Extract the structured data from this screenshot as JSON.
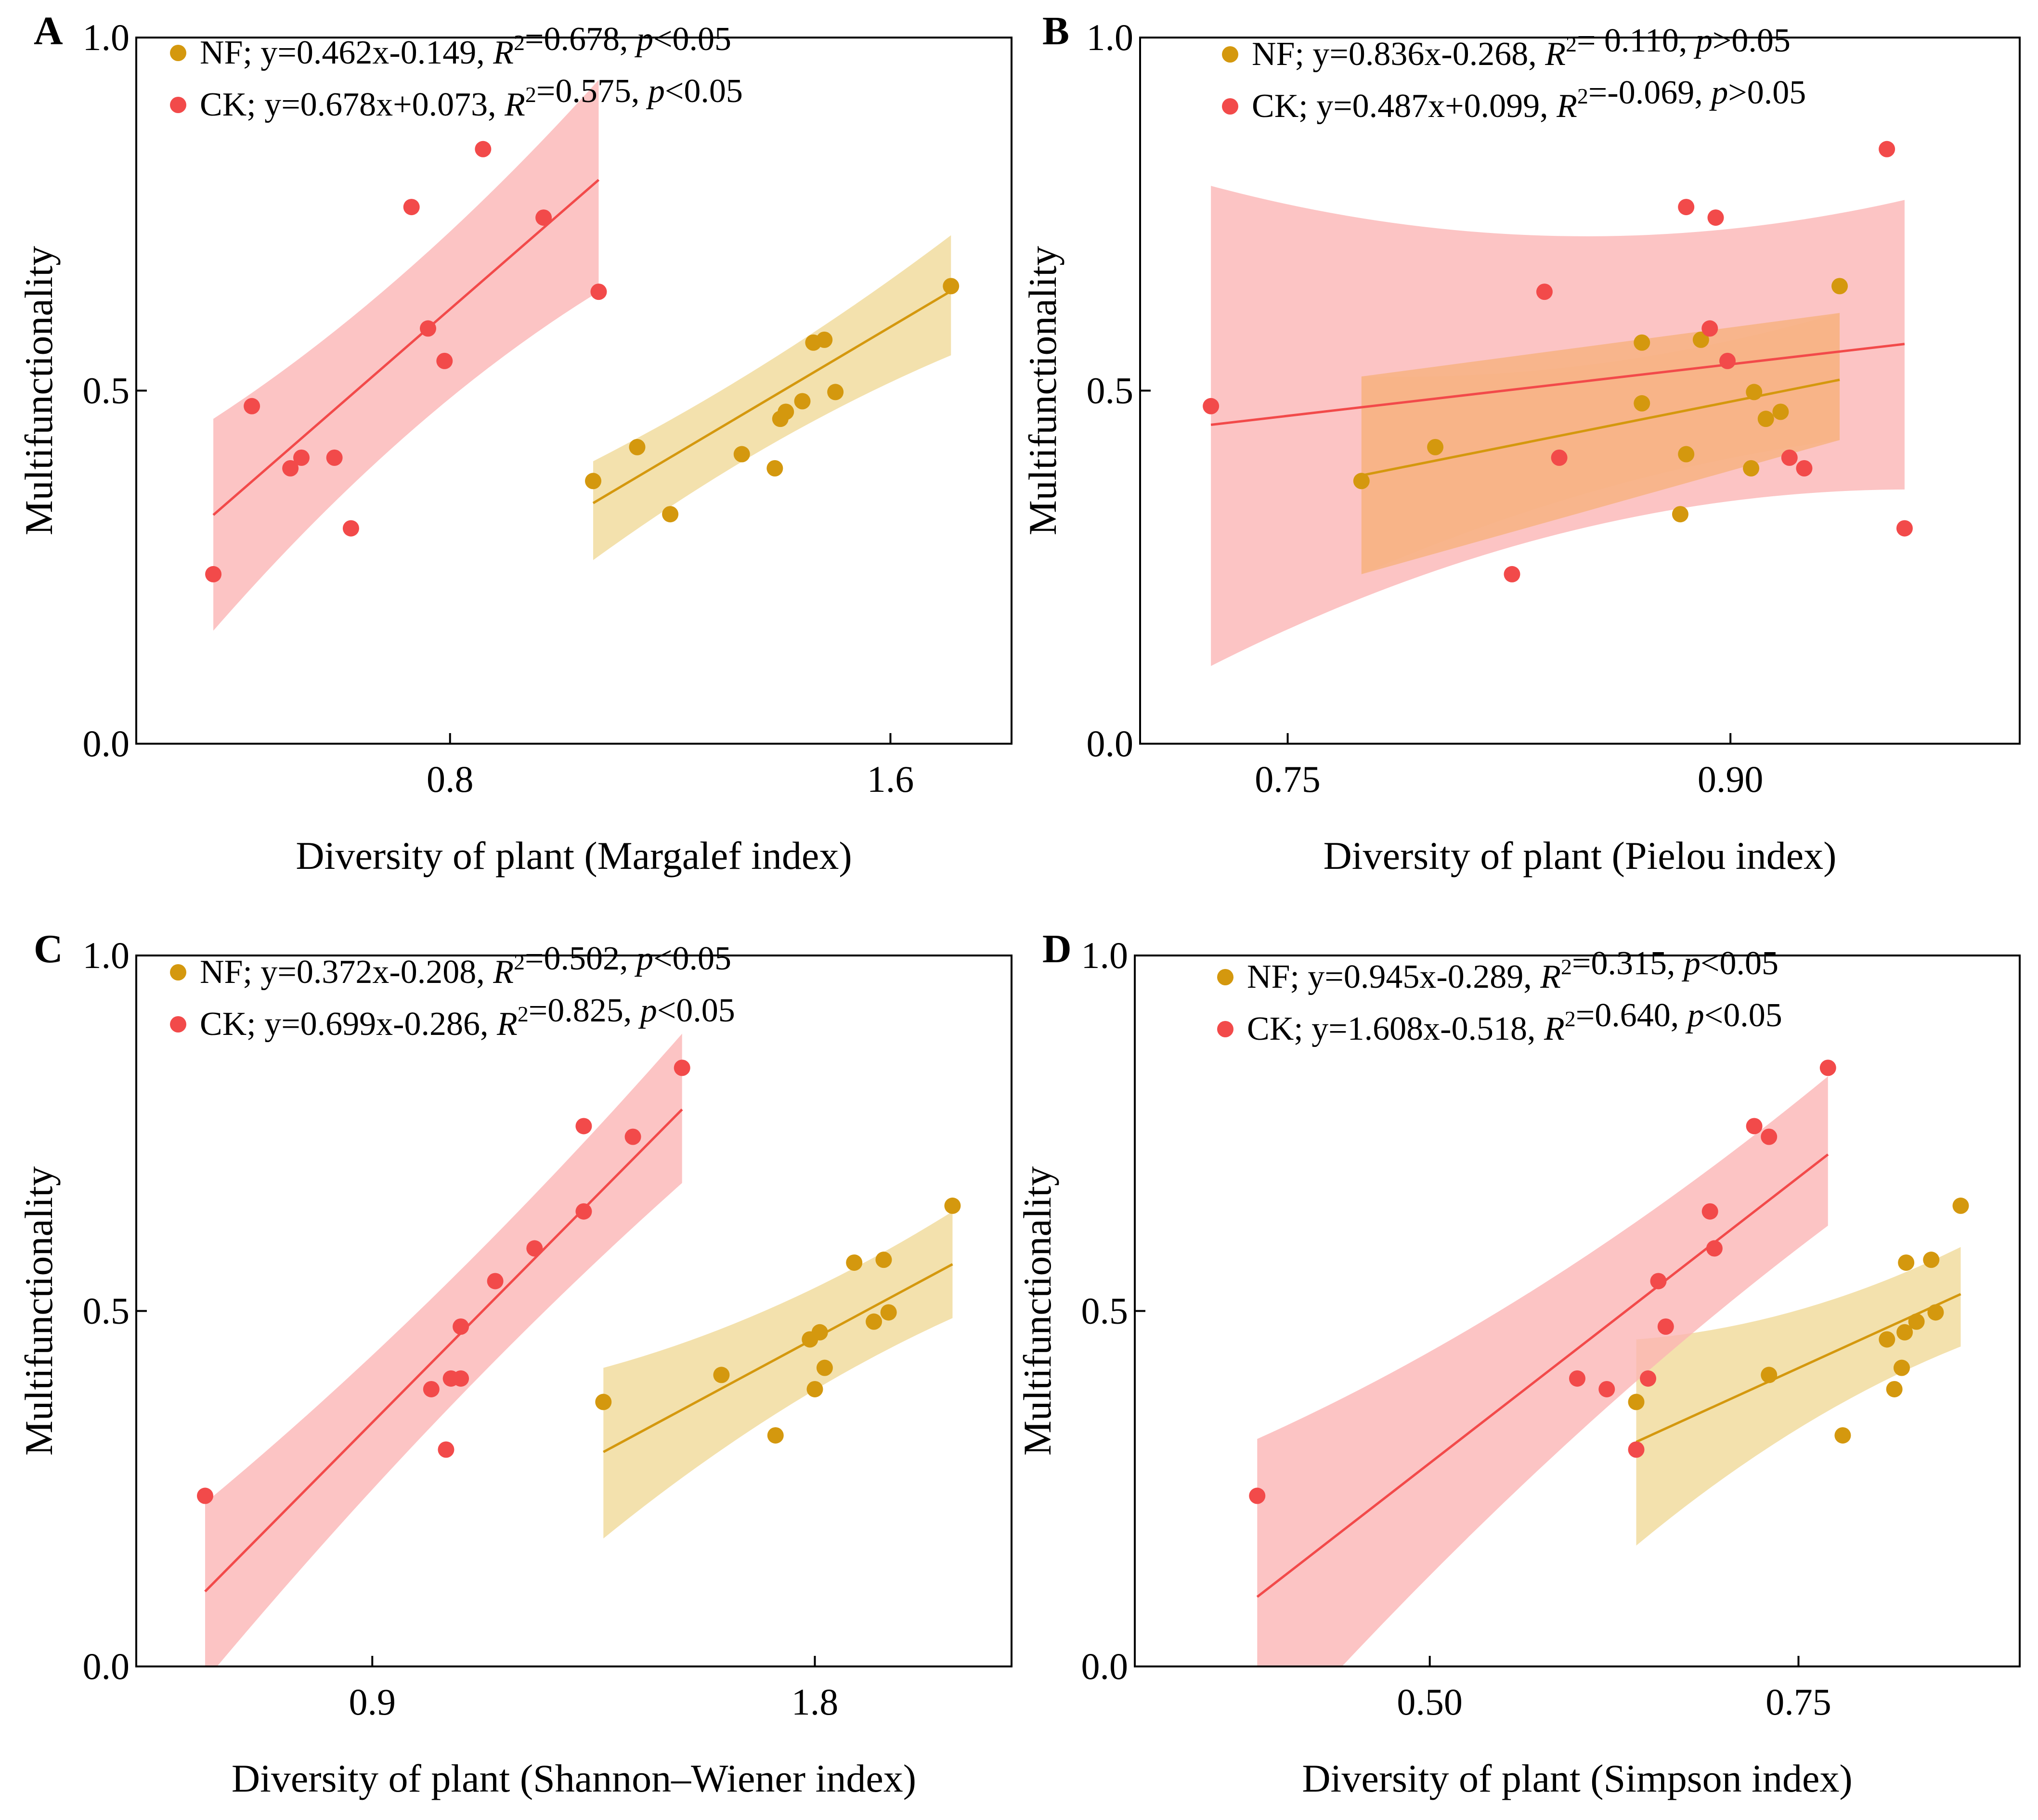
{
  "figure": {
    "background": "#ffffff"
  },
  "colors": {
    "NF": "#d4980e",
    "NF_band": "#f1dc9f",
    "CK": "#f24a4a",
    "CK_band": "#fbb4b4",
    "overlap_band": "#f7b07a"
  },
  "chart_data": [
    {
      "panel": "A",
      "type": "scatter",
      "xlabel": "Diversity of plant (Margalef index)",
      "ylabel": "Multifunctionality",
      "xlim": [
        0.23,
        1.82
      ],
      "ylim": [
        0,
        1
      ],
      "xticks": [
        "0.8",
        "1.6"
      ],
      "xtick_values": [
        0.8,
        1.6
      ],
      "yticks": [
        "0.0",
        "0.5",
        "1.0"
      ],
      "ytick_values": [
        0,
        0.5,
        1
      ],
      "series": [
        {
          "name": "NF",
          "legend": {
            "prefix": "NF; y=0.462x-0.149, ",
            "r": "R",
            "sup": "2",
            "stat": "=0.678, ",
            "p": "p",
            "sig": "<0.05"
          },
          "slope": 0.462,
          "intercept": -0.149,
          "x_range": [
            1.06,
            1.71
          ],
          "band": {
            "x": [
              1.06,
              1.71
            ],
            "lower": [
              0.26,
              0.55
            ],
            "upper": [
              0.4,
              0.72
            ]
          },
          "points": [
            [
              1.06,
              0.372
            ],
            [
              1.14,
              0.42
            ],
            [
              1.2,
              0.325
            ],
            [
              1.33,
              0.41
            ],
            [
              1.39,
              0.39
            ],
            [
              1.4,
              0.46
            ],
            [
              1.41,
              0.47
            ],
            [
              1.44,
              0.485
            ],
            [
              1.46,
              0.568
            ],
            [
              1.48,
              0.572
            ],
            [
              1.5,
              0.498
            ],
            [
              1.71,
              0.648
            ]
          ]
        },
        {
          "name": "CK",
          "legend": {
            "prefix": "CK; y=0.678x+0.073, ",
            "r": "R",
            "sup": "2",
            "stat": "=0.575, ",
            "p": "p",
            "sig": "<0.05"
          },
          "slope": 0.678,
          "intercept": 0.073,
          "x_range": [
            0.37,
            1.07
          ],
          "band": {
            "x": [
              0.37,
              1.07
            ],
            "lower": [
              0.16,
              0.64
            ],
            "upper": [
              0.46,
              0.94
            ]
          },
          "points": [
            [
              0.37,
              0.24
            ],
            [
              0.44,
              0.478
            ],
            [
              0.51,
              0.39
            ],
            [
              0.53,
              0.405
            ],
            [
              0.59,
              0.405
            ],
            [
              0.62,
              0.305
            ],
            [
              0.73,
              0.76
            ],
            [
              0.76,
              0.588
            ],
            [
              0.79,
              0.542
            ],
            [
              0.86,
              0.842
            ],
            [
              0.97,
              0.745
            ],
            [
              1.07,
              0.64
            ]
          ]
        }
      ]
    },
    {
      "panel": "B",
      "type": "scatter",
      "xlabel": "Diversity of plant (Pielou index)",
      "ylabel": "Multifunctionality",
      "xlim": [
        0.7,
        0.998
      ],
      "ylim": [
        0,
        1
      ],
      "xticks": [
        "0.75",
        "0.90"
      ],
      "xtick_values": [
        0.75,
        0.9
      ],
      "yticks": [
        "0.0",
        "0.5",
        "1.0"
      ],
      "ytick_values": [
        0,
        0.5,
        1
      ],
      "series": [
        {
          "name": "NF",
          "legend": {
            "prefix": "NF; y=0.836x-0.268, ",
            "r": "R",
            "sup": "2",
            "stat": "= 0.110, ",
            "p": "p",
            "sig": ">0.05"
          },
          "slope": 0.836,
          "intercept": -0.268,
          "x_range": [
            0.775,
            0.937
          ],
          "band": {
            "x": [
              0.775,
              0.937
            ],
            "lower": [
              0.24,
              0.43
            ],
            "upper": [
              0.52,
              0.61
            ]
          },
          "points": [
            [
              0.775,
              0.372
            ],
            [
              0.8,
              0.42
            ],
            [
              0.87,
              0.568
            ],
            [
              0.87,
              0.482
            ],
            [
              0.883,
              0.325
            ],
            [
              0.885,
              0.41
            ],
            [
              0.89,
              0.572
            ],
            [
              0.907,
              0.39
            ],
            [
              0.908,
              0.498
            ],
            [
              0.912,
              0.46
            ],
            [
              0.917,
              0.47
            ],
            [
              0.937,
              0.648
            ]
          ]
        },
        {
          "name": "CK",
          "legend": {
            "prefix": "CK; y=0.487x+0.099, ",
            "r": "R",
            "sup": "2",
            "stat": "=-0.069, ",
            "p": "p",
            "sig": ">0.05"
          },
          "slope": 0.487,
          "intercept": 0.099,
          "x_range": [
            0.724,
            0.959
          ],
          "band": {
            "x": [
              0.724,
              0.959
            ],
            "lower": [
              0.11,
              0.36
            ],
            "upper": [
              0.79,
              0.77
            ]
          },
          "points": [
            [
              0.724,
              0.478
            ],
            [
              0.826,
              0.24
            ],
            [
              0.837,
              0.64
            ],
            [
              0.842,
              0.405
            ],
            [
              0.885,
              0.76
            ],
            [
              0.893,
              0.588
            ],
            [
              0.895,
              0.745
            ],
            [
              0.899,
              0.542
            ],
            [
              0.92,
              0.405
            ],
            [
              0.925,
              0.39
            ],
            [
              0.953,
              0.842
            ],
            [
              0.959,
              0.305
            ]
          ]
        }
      ]
    },
    {
      "panel": "C",
      "type": "scatter",
      "xlabel": "Diversity of plant (Shannon–Wiener index)",
      "ylabel": "Multifunctionality",
      "xlim": [
        0.42,
        2.2
      ],
      "ylim": [
        0,
        1
      ],
      "xticks": [
        "0.9",
        "1.8"
      ],
      "xtick_values": [
        0.9,
        1.8
      ],
      "yticks": [
        "0.0",
        "0.5",
        "1.0"
      ],
      "ytick_values": [
        0,
        0.5,
        1
      ],
      "series": [
        {
          "name": "NF",
          "legend": {
            "prefix": "NF; y=0.372x-0.208, ",
            "r": "R",
            "sup": "2",
            "stat": "=0.502, ",
            "p": "p",
            "sig": "<0.05"
          },
          "slope": 0.372,
          "intercept": -0.208,
          "x_range": [
            1.37,
            2.08
          ],
          "band": {
            "x": [
              1.37,
              2.08
            ],
            "lower": [
              0.18,
              0.49
            ],
            "upper": [
              0.42,
              0.64
            ]
          },
          "points": [
            [
              1.37,
              0.372
            ],
            [
              1.61,
              0.41
            ],
            [
              1.72,
              0.325
            ],
            [
              1.79,
              0.46
            ],
            [
              1.8,
              0.39
            ],
            [
              1.81,
              0.47
            ],
            [
              1.82,
              0.42
            ],
            [
              1.88,
              0.568
            ],
            [
              1.92,
              0.485
            ],
            [
              1.94,
              0.572
            ],
            [
              1.95,
              0.498
            ],
            [
              2.08,
              0.648
            ]
          ]
        },
        {
          "name": "CK",
          "legend": {
            "prefix": "CK; y=0.699x-0.286, ",
            "r": "R",
            "sup": "2",
            "stat": "=0.825, ",
            "p": "p",
            "sig": "<0.05"
          },
          "slope": 0.699,
          "intercept": -0.286,
          "x_range": [
            0.56,
            1.53
          ],
          "band": {
            "x": [
              0.56,
              1.53
            ],
            "lower": [
              -0.02,
              0.68
            ],
            "upper": [
              0.23,
              0.89
            ]
          },
          "points": [
            [
              0.56,
              0.24
            ],
            [
              1.02,
              0.39
            ],
            [
              1.05,
              0.305
            ],
            [
              1.06,
              0.405
            ],
            [
              1.08,
              0.405
            ],
            [
              1.08,
              0.478
            ],
            [
              1.15,
              0.542
            ],
            [
              1.23,
              0.588
            ],
            [
              1.33,
              0.76
            ],
            [
              1.33,
              0.64
            ],
            [
              1.43,
              0.745
            ],
            [
              1.53,
              0.842
            ]
          ]
        }
      ]
    },
    {
      "panel": "D",
      "type": "scatter",
      "xlabel": "Diversity of plant (Simpson index)",
      "ylabel": "Multifunctionality",
      "xlim": [
        0.3,
        0.9
      ],
      "ylim": [
        0,
        1
      ],
      "xticks": [
        "0.50",
        "0.75"
      ],
      "xtick_values": [
        0.5,
        0.75
      ],
      "yticks": [
        "0.0",
        "0.5",
        "1.0"
      ],
      "ytick_values": [
        0,
        0.5,
        1
      ],
      "series": [
        {
          "name": "NF",
          "legend": {
            "prefix": "NF; y=0.945x-0.289, ",
            "r": "R",
            "sup": "2",
            "stat": "=0.315, ",
            "p": "p",
            "sig": "<0.05"
          },
          "slope": 0.945,
          "intercept": -0.289,
          "x_range": [
            0.64,
            0.86
          ],
          "band": {
            "x": [
              0.64,
              0.86
            ],
            "lower": [
              0.17,
              0.45
            ],
            "upper": [
              0.46,
              0.59
            ]
          },
          "points": [
            [
              0.64,
              0.372
            ],
            [
              0.73,
              0.41
            ],
            [
              0.78,
              0.325
            ],
            [
              0.81,
              0.46
            ],
            [
              0.815,
              0.39
            ],
            [
              0.82,
              0.42
            ],
            [
              0.822,
              0.47
            ],
            [
              0.823,
              0.568
            ],
            [
              0.83,
              0.485
            ],
            [
              0.84,
              0.572
            ],
            [
              0.843,
              0.498
            ],
            [
              0.86,
              0.648
            ]
          ]
        },
        {
          "name": "CK",
          "legend": {
            "prefix": "CK; y=1.608x-0.518, ",
            "r": "R",
            "sup": "2",
            "stat": "=0.640, ",
            "p": "p",
            "sig": "<0.05"
          },
          "slope": 1.608,
          "intercept": -0.518,
          "x_range": [
            0.383,
            0.77
          ],
          "band": {
            "x": [
              0.383,
              0.77
            ],
            "lower": [
              -0.13,
              0.62
            ],
            "upper": [
              0.32,
              0.83
            ]
          },
          "points": [
            [
              0.383,
              0.24
            ],
            [
              0.6,
              0.405
            ],
            [
              0.62,
              0.39
            ],
            [
              0.64,
              0.305
            ],
            [
              0.648,
              0.405
            ],
            [
              0.655,
              0.542
            ],
            [
              0.66,
              0.478
            ],
            [
              0.69,
              0.64
            ],
            [
              0.693,
              0.588
            ],
            [
              0.72,
              0.76
            ],
            [
              0.73,
              0.745
            ],
            [
              0.77,
              0.842
            ]
          ]
        }
      ]
    }
  ]
}
